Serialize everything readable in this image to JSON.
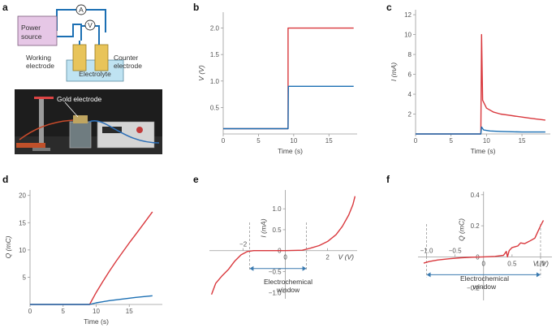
{
  "panels": {
    "a": {
      "label": "a",
      "schematic": {
        "power_source": [
          "Power",
          "source"
        ],
        "ammeter": "A",
        "voltmeter": "V",
        "working_electrode": [
          "Working",
          "electrode"
        ],
        "counter_electrode": [
          "Counter",
          "electrode"
        ],
        "electrolyte": "Electrolyte"
      },
      "photo": {
        "annotation": "Gold electrode"
      }
    },
    "b": {
      "label": "b"
    },
    "c": {
      "label": "c"
    },
    "d": {
      "label": "d"
    },
    "e": {
      "label": "e",
      "annotation": [
        "Electrochemical",
        "window"
      ]
    },
    "f": {
      "label": "f",
      "annotation": [
        "Electrochemical",
        "window"
      ]
    }
  },
  "colors": {
    "red": "#d9383d",
    "blue": "#1b6fb3",
    "axis": "#9a9a9a",
    "purple_box": "#e6c7e6",
    "gold": "#e8c45a",
    "electrolyte": "#bfe3f2"
  },
  "chart_data": [
    {
      "id": "b",
      "type": "line",
      "xlabel": "Time (s)",
      "ylabel": "V (V)",
      "xlim": [
        0,
        19
      ],
      "ylim": [
        0,
        2.3
      ],
      "xticks": [
        "0",
        "5",
        "10",
        "15"
      ],
      "xtick_values": [
        0,
        5,
        10,
        15
      ],
      "yticks": [
        "0.5",
        "1.0",
        "1.5",
        "2.0"
      ],
      "ytick_values": [
        0.5,
        1.0,
        1.5,
        2.0
      ],
      "series": [
        {
          "color": "red",
          "points": [
            [
              0,
              0.1
            ],
            [
              9.2,
              0.1
            ],
            [
              9.2,
              2.0
            ],
            [
              18.5,
              2.0
            ]
          ]
        },
        {
          "color": "blue",
          "points": [
            [
              0,
              0.1
            ],
            [
              9.2,
              0.1
            ],
            [
              9.25,
              0.9
            ],
            [
              18.5,
              0.9
            ]
          ]
        }
      ]
    },
    {
      "id": "c",
      "type": "line",
      "xlabel": "Time (s)",
      "ylabel": "I (mA)",
      "xlim": [
        0,
        19
      ],
      "ylim": [
        0,
        12.5
      ],
      "xticks": [
        "0",
        "5",
        "10",
        "15"
      ],
      "xtick_values": [
        0,
        5,
        10,
        15
      ],
      "yticks": [
        "2",
        "4",
        "6",
        "8",
        "10",
        "12"
      ],
      "ytick_values": [
        2,
        4,
        6,
        8,
        10,
        12
      ],
      "series": [
        {
          "color": "red",
          "points": [
            [
              0,
              0
            ],
            [
              9.2,
              0
            ],
            [
              9.3,
              10
            ],
            [
              9.45,
              3.4
            ],
            [
              10,
              2.6
            ],
            [
              11,
              2.2
            ],
            [
              12,
              2.0
            ],
            [
              13,
              1.9
            ],
            [
              14,
              1.8
            ],
            [
              15,
              1.7
            ],
            [
              16,
              1.6
            ],
            [
              17,
              1.5
            ],
            [
              18.3,
              1.4
            ]
          ]
        },
        {
          "color": "blue",
          "points": [
            [
              0,
              0
            ],
            [
              9.2,
              0
            ],
            [
              9.3,
              0.7
            ],
            [
              9.6,
              0.4
            ],
            [
              10.5,
              0.3
            ],
            [
              12,
              0.25
            ],
            [
              15,
              0.2
            ],
            [
              18.3,
              0.2
            ]
          ]
        }
      ]
    },
    {
      "id": "d",
      "type": "line",
      "xlabel": "Time (s)",
      "ylabel": "Q (mC)",
      "xlim": [
        0,
        20
      ],
      "ylim": [
        0,
        21
      ],
      "xticks": [
        "0",
        "5",
        "10",
        "15"
      ],
      "xtick_values": [
        0,
        5,
        10,
        15
      ],
      "yticks": [
        "5",
        "10",
        "15",
        "20"
      ],
      "ytick_values": [
        5,
        10,
        15,
        20
      ],
      "series": [
        {
          "color": "red",
          "points": [
            [
              0,
              0
            ],
            [
              9,
              0
            ],
            [
              10,
              2.2
            ],
            [
              11,
              4.2
            ],
            [
              12,
              6.1
            ],
            [
              13,
              7.9
            ],
            [
              14,
              9.6
            ],
            [
              15,
              11.3
            ],
            [
              16,
              12.9
            ],
            [
              17,
              14.5
            ],
            [
              18.5,
              17
            ]
          ]
        },
        {
          "color": "blue",
          "points": [
            [
              0,
              0
            ],
            [
              9,
              0
            ],
            [
              10,
              0.3
            ],
            [
              12,
              0.7
            ],
            [
              14,
              1.0
            ],
            [
              16,
              1.3
            ],
            [
              18.5,
              1.6
            ]
          ]
        }
      ]
    },
    {
      "id": "e",
      "type": "line",
      "xlabel": "V (V)",
      "ylabel": "I (mA)",
      "xlim": [
        -3.6,
        3.4
      ],
      "ylim": [
        -1.15,
        1.45
      ],
      "xticks": [
        "−2",
        "0",
        "2"
      ],
      "xtick_values": [
        -2,
        0,
        2
      ],
      "yticks": [
        "1.0",
        "0.5",
        "0",
        "−0.5",
        "−1.0"
      ],
      "ytick_values": [
        1.0,
        0.5,
        0,
        -0.5,
        -1.0
      ],
      "window": [
        -1.7,
        1.0
      ],
      "series": [
        {
          "color": "red",
          "points": [
            [
              -3.5,
              -1.05
            ],
            [
              -3.3,
              -0.78
            ],
            [
              -3.0,
              -0.6
            ],
            [
              -2.7,
              -0.45
            ],
            [
              -2.4,
              -0.25
            ],
            [
              -2.1,
              -0.1
            ],
            [
              -1.8,
              -0.02
            ],
            [
              -1.5,
              0
            ],
            [
              0,
              0
            ],
            [
              0.8,
              0.01
            ],
            [
              1.2,
              0.06
            ],
            [
              1.6,
              0.12
            ],
            [
              2.0,
              0.22
            ],
            [
              2.4,
              0.38
            ],
            [
              2.7,
              0.58
            ],
            [
              3.0,
              0.85
            ],
            [
              3.2,
              1.1
            ],
            [
              3.3,
              1.3
            ]
          ]
        }
      ]
    },
    {
      "id": "f",
      "type": "line",
      "xlabel": "V (V)",
      "ylabel": "Q (mC)",
      "xlim": [
        -1.15,
        1.2
      ],
      "ylim": [
        -0.28,
        0.42
      ],
      "xticks": [
        "−1.0",
        "−0.5",
        "0",
        "0.5",
        "1.0"
      ],
      "xtick_values": [
        -1.0,
        -0.5,
        0,
        0.5,
        1.0
      ],
      "yticks": [
        "0.4",
        "0.2",
        "0",
        "−0.2"
      ],
      "ytick_values": [
        0.4,
        0.2,
        0,
        -0.2
      ],
      "window": [
        -1.0,
        1.0
      ],
      "series": [
        {
          "color": "red",
          "points": [
            [
              -1.05,
              -0.04
            ],
            [
              -0.95,
              -0.03
            ],
            [
              -0.8,
              -0.02
            ],
            [
              -0.6,
              -0.012
            ],
            [
              -0.4,
              -0.006
            ],
            [
              -0.2,
              -0.002
            ],
            [
              0,
              0
            ],
            [
              0.2,
              0.003
            ],
            [
              0.35,
              0.01
            ],
            [
              0.4,
              0.035
            ],
            [
              0.42,
              0.0
            ],
            [
              0.45,
              0.04
            ],
            [
              0.5,
              0.06
            ],
            [
              0.6,
              0.07
            ],
            [
              0.65,
              0.09
            ],
            [
              0.72,
              0.085
            ],
            [
              0.8,
              0.1
            ],
            [
              0.9,
              0.12
            ],
            [
              0.95,
              0.16
            ],
            [
              1.0,
              0.2
            ],
            [
              1.05,
              0.235
            ]
          ]
        }
      ]
    }
  ]
}
